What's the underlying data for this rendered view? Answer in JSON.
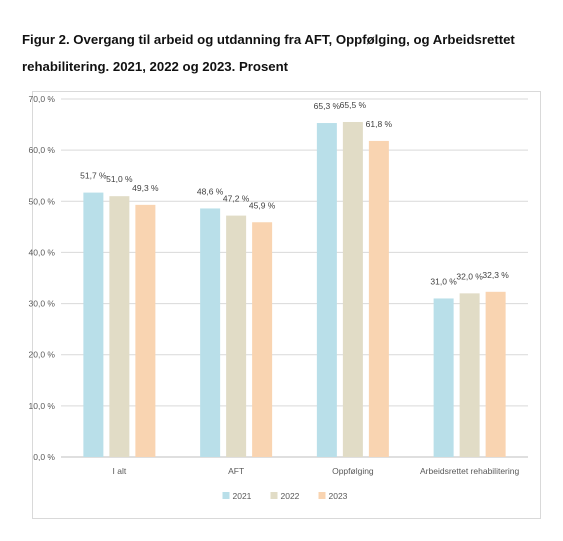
{
  "figure": {
    "title_line1": "Figur 2. Overgang til arbeid og utdanning fra AFT, Oppfølging, og Arbeidsrettet",
    "title_line2": "rehabilitering. 2021, 2022 og 2023. Prosent"
  },
  "chart_data": {
    "type": "bar",
    "categories": [
      "I alt",
      "AFT",
      "Oppfølging",
      "Arbeidsrettet rehabilitering"
    ],
    "series": [
      {
        "name": "2021",
        "values": [
          51.7,
          48.6,
          65.3,
          31.0
        ],
        "labels": [
          "51,7 %",
          "48,6 %",
          "65,3 %",
          "31,0 %"
        ],
        "color": "#b9dfe9"
      },
      {
        "name": "2022",
        "values": [
          51.0,
          47.2,
          65.5,
          32.0
        ],
        "labels": [
          "51,0 %",
          "47,2 %",
          "65,5 %",
          "32,0 %"
        ],
        "color": "#e1dcc6"
      },
      {
        "name": "2023",
        "values": [
          49.3,
          45.9,
          61.8,
          32.3
        ],
        "labels": [
          "49,3 %",
          "45,9 %",
          "61,8 %",
          "32,3 %"
        ],
        "color": "#f9d4b1"
      }
    ],
    "ylim": [
      0,
      70
    ],
    "yticks": [
      0,
      10,
      20,
      30,
      40,
      50,
      60,
      70
    ],
    "ytick_labels": [
      "0,0 %",
      "10,0 %",
      "20,0 %",
      "30,0 %",
      "40,0 %",
      "50,0 %",
      "60,0 %",
      "70,0 %"
    ],
    "grid": true,
    "legend_position": "bottom-center",
    "xlabel": "",
    "ylabel": ""
  }
}
